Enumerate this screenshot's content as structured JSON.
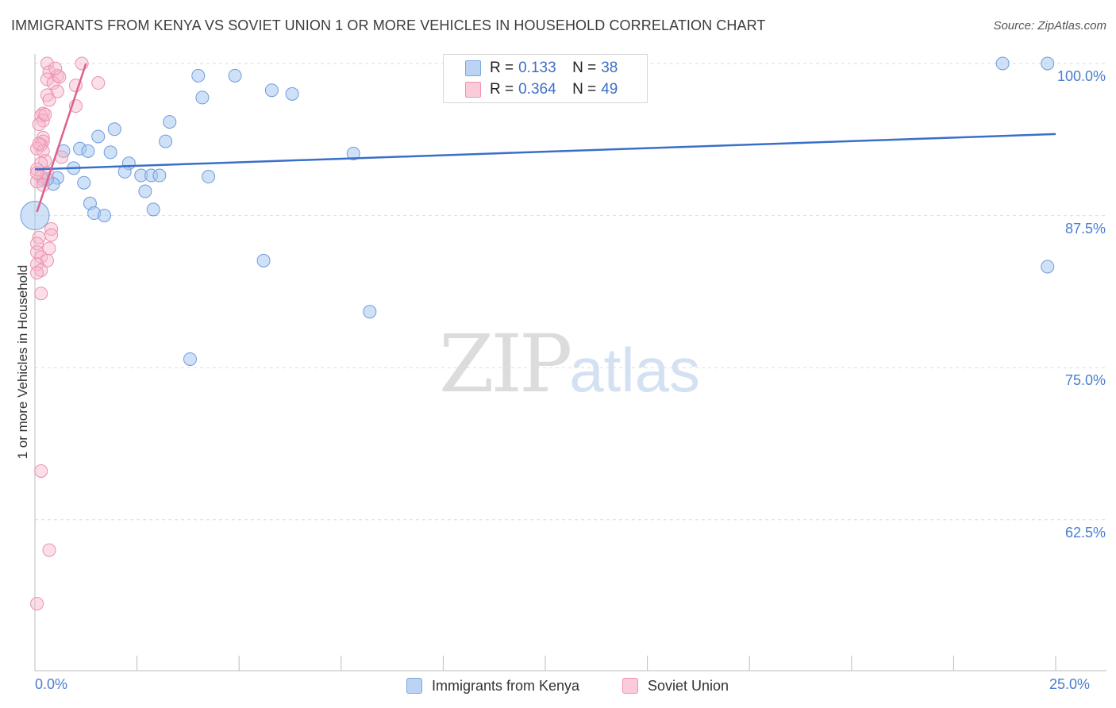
{
  "title": "IMMIGRANTS FROM KENYA VS SOVIET UNION 1 OR MORE VEHICLES IN HOUSEHOLD CORRELATION CHART",
  "source": "Source: ZipAtlas.com",
  "watermark": {
    "zip": "ZIP",
    "atlas": "atlas"
  },
  "stats": [
    {
      "r_label": "R =",
      "r_value": "0.133",
      "n_label": "N =",
      "n_value": "38",
      "color": "#a8c8f0"
    },
    {
      "r_label": "R =",
      "r_value": "0.364",
      "n_label": "N =",
      "n_value": "49",
      "color": "#f7b8cb"
    }
  ],
  "legend": [
    {
      "label": "Immigrants from Kenya",
      "color": "#a8c8f0"
    },
    {
      "label": "Soviet Union",
      "color": "#f7b8cb"
    }
  ],
  "chart_data": {
    "type": "scatter",
    "title": "IMMIGRANTS FROM KENYA VS SOVIET UNION 1 OR MORE VEHICLES IN HOUSEHOLD CORRELATION CHART",
    "xlabel": "",
    "ylabel": "1 or more Vehicles in Household",
    "xlim": [
      0,
      25
    ],
    "ylim": [
      50,
      100
    ],
    "x_tick_labels": [
      "0.0%",
      "25.0%"
    ],
    "y_ticks": [
      62.5,
      75.0,
      87.5,
      100.0
    ],
    "y_tick_labels": [
      "62.5%",
      "75.0%",
      "87.5%",
      "100.0%"
    ],
    "grid": true,
    "legend_position": "bottom",
    "colors": {
      "kenya": "#4a7dd0",
      "kenya_fill": "#a8c8f0",
      "soviet": "#e0608a",
      "soviet_fill": "#f7b8cb"
    },
    "series": [
      {
        "name": "Immigrants from Kenya",
        "color": "#4a7dd0",
        "points": [
          [
            4.0,
            99.0
          ],
          [
            4.9,
            99.0
          ],
          [
            5.8,
            97.8
          ],
          [
            6.3,
            97.5
          ],
          [
            4.1,
            97.2
          ],
          [
            3.3,
            95.2
          ],
          [
            1.95,
            94.6
          ],
          [
            1.55,
            94.0
          ],
          [
            3.2,
            93.6
          ],
          [
            1.1,
            93.0
          ],
          [
            0.7,
            92.8
          ],
          [
            1.3,
            92.8
          ],
          [
            1.85,
            92.7
          ],
          [
            7.8,
            92.6
          ],
          [
            2.3,
            91.8
          ],
          [
            0.95,
            91.4
          ],
          [
            2.2,
            91.1
          ],
          [
            2.6,
            90.8
          ],
          [
            2.85,
            90.8
          ],
          [
            3.05,
            90.8
          ],
          [
            4.25,
            90.7
          ],
          [
            0.55,
            90.6
          ],
          [
            0.2,
            90.4
          ],
          [
            0.45,
            90.1
          ],
          [
            1.2,
            90.2
          ],
          [
            2.7,
            89.5
          ],
          [
            1.35,
            88.5
          ],
          [
            2.9,
            88.0
          ],
          [
            1.45,
            87.7
          ],
          [
            1.7,
            87.5
          ],
          [
            0.0,
            87.5
          ],
          [
            5.6,
            83.8
          ],
          [
            24.8,
            83.3
          ],
          [
            8.2,
            79.6
          ],
          [
            3.8,
            75.7
          ],
          [
            23.7,
            100.0
          ],
          [
            24.8,
            100.0
          ],
          [
            0.3,
            90.5
          ]
        ],
        "trend": [
          [
            0,
            91.3
          ],
          [
            25,
            94.2
          ]
        ]
      },
      {
        "name": "Soviet Union",
        "color": "#e0608a",
        "points": [
          [
            1.15,
            100.0
          ],
          [
            0.3,
            100.0
          ],
          [
            0.35,
            99.3
          ],
          [
            0.55,
            99.0
          ],
          [
            0.3,
            98.7
          ],
          [
            0.45,
            98.4
          ],
          [
            1.55,
            98.4
          ],
          [
            1.0,
            98.2
          ],
          [
            0.55,
            97.7
          ],
          [
            0.3,
            97.4
          ],
          [
            0.35,
            97.0
          ],
          [
            1.0,
            96.5
          ],
          [
            0.2,
            95.9
          ],
          [
            0.15,
            95.7
          ],
          [
            0.2,
            95.3
          ],
          [
            0.1,
            95.0
          ],
          [
            0.2,
            93.9
          ],
          [
            0.2,
            93.6
          ],
          [
            0.15,
            93.3
          ],
          [
            0.05,
            93.0
          ],
          [
            0.2,
            92.8
          ],
          [
            0.65,
            92.3
          ],
          [
            0.25,
            92.0
          ],
          [
            0.15,
            91.8
          ],
          [
            0.05,
            91.3
          ],
          [
            0.3,
            91.0
          ],
          [
            0.15,
            90.7
          ],
          [
            0.05,
            90.3
          ],
          [
            0.4,
            86.4
          ],
          [
            0.4,
            85.9
          ],
          [
            0.1,
            85.7
          ],
          [
            0.05,
            85.2
          ],
          [
            0.35,
            84.8
          ],
          [
            0.05,
            84.5
          ],
          [
            0.15,
            84.1
          ],
          [
            0.3,
            83.8
          ],
          [
            0.05,
            83.5
          ],
          [
            0.15,
            83.0
          ],
          [
            0.05,
            82.8
          ],
          [
            0.15,
            81.1
          ],
          [
            0.15,
            66.5
          ],
          [
            0.35,
            60.0
          ],
          [
            0.05,
            55.6
          ],
          [
            0.6,
            98.9
          ],
          [
            0.5,
            99.6
          ],
          [
            0.25,
            95.8
          ],
          [
            0.1,
            93.4
          ],
          [
            0.05,
            91.0
          ],
          [
            0.2,
            90.0
          ]
        ],
        "trend": [
          [
            0.05,
            87.8
          ],
          [
            1.25,
            100.0
          ]
        ]
      }
    ]
  }
}
